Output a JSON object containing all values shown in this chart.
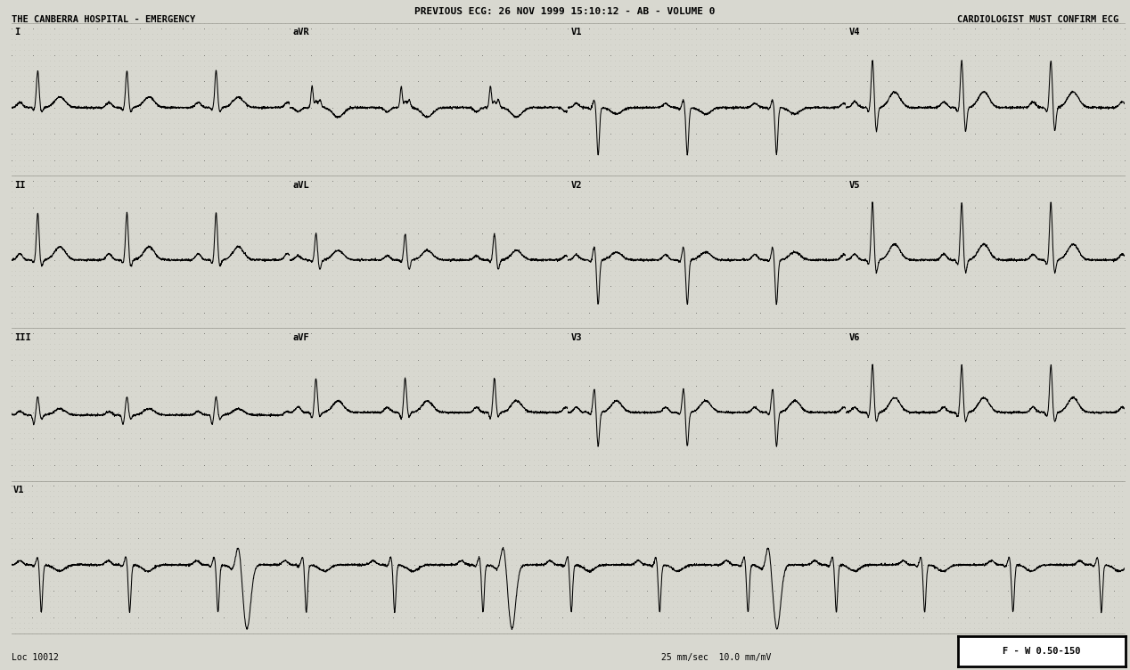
{
  "title_line1": "PREVIOUS ECG: 26 NOV 1999 15:10:12 - AB - VOLUME 0",
  "title_line2": "THE CANBERRA HOSPITAL - EMERGENCY",
  "title_right": "CARDIOLOGIST MUST CONFIRM ECG",
  "footer_left": "Loc 10012",
  "footer_right": "25 mm/sec  10.0 mm/mV",
  "footer_box": "F - W 0.50-150",
  "bg_color": "#d8d8d0",
  "grid_dot_color": "#999990",
  "ecg_color": "#000000",
  "text_color": "#000000",
  "lead_layout": [
    [
      [
        "I",
        0
      ],
      [
        "aVR",
        1
      ],
      [
        "V1",
        2
      ],
      [
        "V4",
        3
      ]
    ],
    [
      [
        "II",
        0
      ],
      [
        "aVL",
        1
      ],
      [
        "V2",
        2
      ],
      [
        "V5",
        3
      ]
    ],
    [
      [
        "III",
        0
      ],
      [
        "aVF",
        1
      ],
      [
        "V3",
        2
      ],
      [
        "V6",
        3
      ]
    ]
  ],
  "rhythm_label": "V1",
  "heart_rate": 72,
  "lead_params": {
    "I": {
      "r_amp": 0.7,
      "q_depth": 0.05,
      "s_depth": 0.08,
      "p_amp": 0.1,
      "t_amp": 0.2,
      "pr": 0.22,
      "qrs": 0.09,
      "qt": 0.36,
      "baseline": 0.0
    },
    "II": {
      "r_amp": 0.9,
      "q_depth": 0.06,
      "s_depth": 0.12,
      "p_amp": 0.12,
      "t_amp": 0.25,
      "pr": 0.22,
      "qrs": 0.09,
      "qt": 0.36,
      "baseline": 0.0
    },
    "III": {
      "r_amp": 0.35,
      "q_depth": 0.18,
      "s_depth": 0.08,
      "p_amp": 0.07,
      "t_amp": 0.12,
      "pr": 0.22,
      "qrs": 0.09,
      "qt": 0.36,
      "baseline": -0.05
    },
    "aVR": {
      "r_amp": 0.12,
      "q_depth": -0.4,
      "s_depth": -0.15,
      "p_amp": -0.08,
      "t_amp": -0.18,
      "pr": 0.22,
      "qrs": 0.09,
      "qt": 0.36,
      "baseline": 0.0
    },
    "aVL": {
      "r_amp": 0.5,
      "q_depth": 0.04,
      "s_depth": 0.18,
      "p_amp": 0.08,
      "t_amp": 0.18,
      "pr": 0.22,
      "qrs": 0.09,
      "qt": 0.36,
      "baseline": 0.0
    },
    "aVF": {
      "r_amp": 0.65,
      "q_depth": 0.12,
      "s_depth": 0.08,
      "p_amp": 0.1,
      "t_amp": 0.22,
      "pr": 0.22,
      "qrs": 0.09,
      "qt": 0.36,
      "baseline": 0.0
    },
    "V1": {
      "r_amp": 0.15,
      "q_depth": 0.03,
      "s_depth": 0.9,
      "p_amp": 0.08,
      "t_amp": -0.12,
      "pr": 0.22,
      "qrs": 0.09,
      "qt": 0.36,
      "baseline": 0.0
    },
    "V2": {
      "r_amp": 0.25,
      "q_depth": 0.03,
      "s_depth": 0.85,
      "p_amp": 0.1,
      "t_amp": 0.15,
      "pr": 0.22,
      "qrs": 0.09,
      "qt": 0.36,
      "baseline": 0.0
    },
    "V3": {
      "r_amp": 0.45,
      "q_depth": 0.04,
      "s_depth": 0.65,
      "p_amp": 0.1,
      "t_amp": 0.22,
      "pr": 0.22,
      "qrs": 0.09,
      "qt": 0.36,
      "baseline": 0.0
    },
    "V4": {
      "r_amp": 0.9,
      "q_depth": 0.08,
      "s_depth": 0.45,
      "p_amp": 0.11,
      "t_amp": 0.3,
      "pr": 0.22,
      "qrs": 0.09,
      "qt": 0.36,
      "baseline": 0.0
    },
    "V5": {
      "r_amp": 1.1,
      "q_depth": 0.09,
      "s_depth": 0.25,
      "p_amp": 0.11,
      "t_amp": 0.3,
      "pr": 0.22,
      "qrs": 0.09,
      "qt": 0.36,
      "baseline": 0.0
    },
    "V6": {
      "r_amp": 0.9,
      "q_depth": 0.08,
      "s_depth": 0.18,
      "p_amp": 0.1,
      "t_amp": 0.28,
      "pr": 0.22,
      "qrs": 0.09,
      "qt": 0.36,
      "baseline": 0.0
    }
  }
}
